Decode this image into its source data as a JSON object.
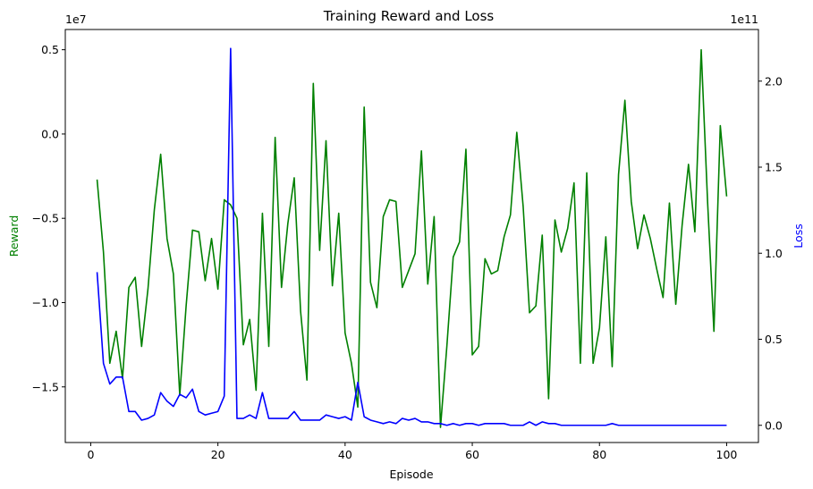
{
  "chart_data": {
    "type": "line",
    "title": "Training Reward and Loss",
    "xlabel": "Episode",
    "xlim": [
      -4,
      105
    ],
    "x_ticks": [
      0,
      20,
      40,
      60,
      80,
      100
    ],
    "x_tick_labels": [
      "0",
      "20",
      "40",
      "60",
      "80",
      "100"
    ],
    "x": [
      1,
      2,
      3,
      4,
      5,
      6,
      7,
      8,
      9,
      10,
      11,
      12,
      13,
      14,
      15,
      16,
      17,
      18,
      19,
      20,
      21,
      22,
      23,
      24,
      25,
      26,
      27,
      28,
      29,
      30,
      31,
      32,
      33,
      34,
      35,
      36,
      37,
      38,
      39,
      40,
      41,
      42,
      43,
      44,
      45,
      46,
      47,
      48,
      49,
      50,
      51,
      52,
      53,
      54,
      55,
      56,
      57,
      58,
      59,
      60,
      61,
      62,
      63,
      64,
      65,
      66,
      67,
      68,
      69,
      70,
      71,
      72,
      73,
      74,
      75,
      76,
      77,
      78,
      79,
      80,
      81,
      82,
      83,
      84,
      85,
      86,
      87,
      88,
      89,
      90,
      91,
      92,
      93,
      94,
      95,
      96,
      97,
      98,
      99,
      100
    ],
    "left_axis": {
      "label": "Reward",
      "color": "#008000",
      "offset_text": "1e7",
      "ylim": [
        -1.83,
        0.62
      ],
      "ticks": [
        -1.5,
        -1.0,
        -0.5,
        0.0,
        0.5
      ],
      "tick_labels": [
        "−1.5",
        "−1.0",
        "−0.5",
        "0.0",
        "0.5"
      ]
    },
    "right_axis": {
      "label": "Loss",
      "color": "#0000ff",
      "offset_text": "1e11",
      "ylim": [
        -0.1,
        2.3
      ],
      "ticks": [
        0.0,
        0.5,
        1.0,
        1.5,
        2.0
      ],
      "tick_labels": [
        "0.0",
        "0.5",
        "1.0",
        "1.5",
        "2.0"
      ]
    },
    "series": [
      {
        "axis": "left",
        "color": "#008000",
        "values": [
          -0.27,
          -0.7,
          -1.36,
          -1.17,
          -1.45,
          -0.91,
          -0.85,
          -1.26,
          -0.92,
          -0.45,
          -0.12,
          -0.62,
          -0.83,
          -1.55,
          -1.02,
          -0.57,
          -0.58,
          -0.87,
          -0.62,
          -0.92,
          -0.39,
          -0.42,
          -0.5,
          -1.25,
          -1.1,
          -1.52,
          -0.47,
          -1.26,
          -0.02,
          -0.91,
          -0.53,
          -0.26,
          -1.05,
          -1.46,
          0.3,
          -0.69,
          -0.04,
          -0.9,
          -0.47,
          -1.18,
          -1.36,
          -1.62,
          0.16,
          -0.88,
          -1.03,
          -0.49,
          -0.39,
          -0.4,
          -0.91,
          -0.81,
          -0.71,
          -0.1,
          -0.89,
          -0.49,
          -1.74,
          -1.26,
          -0.73,
          -0.64,
          -0.09,
          -1.31,
          -1.26,
          -0.74,
          -0.83,
          -0.81,
          -0.61,
          -0.48,
          0.01,
          -0.43,
          -1.06,
          -1.02,
          -0.6,
          -1.57,
          -0.51,
          -0.7,
          -0.56,
          -0.29,
          -1.36,
          -0.23,
          -1.36,
          -1.15,
          -0.61,
          -1.38,
          -0.24,
          0.2,
          -0.4,
          -0.68,
          -0.48,
          -0.62,
          -0.8,
          -0.97,
          -0.41,
          -1.01,
          -0.54,
          -0.18,
          -0.58,
          0.5,
          -0.4,
          -1.17,
          0.05,
          -0.37
        ]
      },
      {
        "axis": "right",
        "color": "#0000ff",
        "values": [
          0.89,
          0.36,
          0.24,
          0.28,
          0.28,
          0.08,
          0.08,
          0.03,
          0.04,
          0.06,
          0.19,
          0.14,
          0.11,
          0.18,
          0.16,
          0.21,
          0.08,
          0.06,
          0.07,
          0.08,
          0.17,
          2.19,
          0.04,
          0.04,
          0.06,
          0.04,
          0.19,
          0.04,
          0.04,
          0.04,
          0.04,
          0.08,
          0.03,
          0.03,
          0.03,
          0.03,
          0.06,
          0.05,
          0.04,
          0.05,
          0.03,
          0.25,
          0.05,
          0.03,
          0.02,
          0.01,
          0.02,
          0.01,
          0.04,
          0.03,
          0.04,
          0.02,
          0.02,
          0.01,
          0.01,
          0.0,
          0.01,
          0.0,
          0.01,
          0.01,
          0.0,
          0.01,
          0.01,
          0.01,
          0.01,
          0.0,
          0.0,
          0.0,
          0.02,
          0.0,
          0.02,
          0.01,
          0.01,
          0.0,
          0.0,
          0.0,
          0.0,
          0.0,
          0.0,
          0.0,
          0.0,
          0.01,
          0.0,
          0.0,
          0.0,
          0.0,
          0.0,
          0.0,
          0.0,
          0.0,
          0.0,
          0.0,
          0.0,
          0.0,
          0.0,
          0.0,
          0.0,
          0.0,
          0.0,
          0.0
        ]
      }
    ]
  }
}
